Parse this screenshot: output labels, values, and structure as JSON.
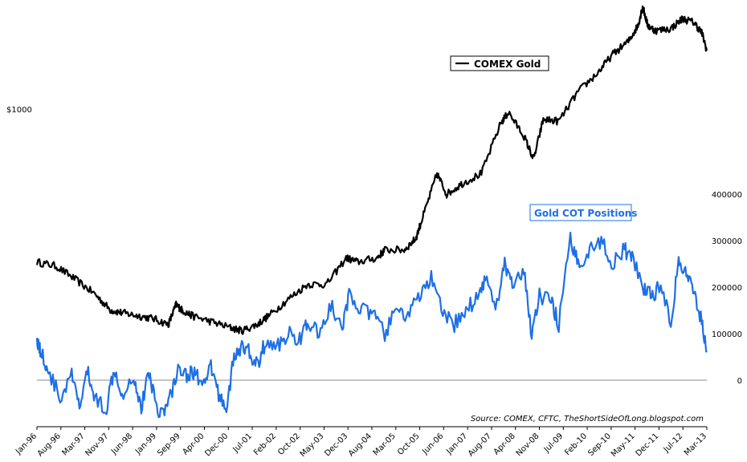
{
  "chart_data": {
    "type": "line",
    "x_tick_labels": [
      "Jan-96",
      "Aug-96",
      "Mar-97",
      "Nov-97",
      "Jun-98",
      "Jan-99",
      "Sep-99",
      "Apr-00",
      "Dec-00",
      "Jul-01",
      "Feb-02",
      "Oct-02",
      "May-03",
      "Dec-03",
      "Aug-04",
      "Mar-05",
      "Oct-05",
      "Jun-06",
      "Jan-07",
      "Aug-07",
      "Apr-08",
      "Nov-08",
      "Jul-09",
      "Feb-10",
      "Sep-10",
      "May-11",
      "Dec-11",
      "Jul-12",
      "Mar-13"
    ],
    "left_axis": {
      "tick_labels": [
        "$1000"
      ],
      "scale": "log"
    },
    "right_axis": {
      "tick_values": [
        0,
        100000,
        200000,
        300000,
        400000
      ],
      "tick_labels": [
        "0",
        "100000",
        "200000",
        "300000",
        "400000"
      ],
      "ylim": [
        -130000,
        440000
      ]
    },
    "series": [
      {
        "name": "COMEX Gold",
        "color": "#000000",
        "axis": "left",
        "unit": "USD/oz",
        "x": [
          1996.0,
          1996.5,
          1997.0,
          1997.5,
          1997.9,
          1998.2,
          1998.6,
          1999.0,
          1999.4,
          1999.6,
          1999.75,
          2000.0,
          2000.5,
          2001.0,
          2001.3,
          2001.7,
          2002.0,
          2002.5,
          2003.0,
          2003.5,
          2004.0,
          2004.3,
          2004.8,
          2005.0,
          2005.5,
          2005.8,
          2006.0,
          2006.35,
          2006.6,
          2007.0,
          2007.5,
          2008.0,
          2008.2,
          2008.6,
          2008.85,
          2009.1,
          2009.5,
          2010.0,
          2010.5,
          2010.9,
          2011.3,
          2011.55,
          2011.67,
          2011.8,
          2012.0,
          2012.4,
          2012.7,
          2013.0,
          2013.2,
          2013.33
        ],
        "y": [
          400,
          390,
          360,
          330,
          300,
          295,
          290,
          285,
          275,
          310,
          300,
          290,
          280,
          270,
          265,
          275,
          290,
          320,
          350,
          350,
          410,
          400,
          410,
          430,
          430,
          460,
          530,
          680,
          600,
          640,
          680,
          920,
          980,
          850,
          740,
          940,
          930,
          1110,
          1240,
          1390,
          1500,
          1650,
          1850,
          1650,
          1600,
          1620,
          1720,
          1680,
          1580,
          1420
        ]
      },
      {
        "name": "Gold COT Positions",
        "color": "#1e6fe6",
        "axis": "right",
        "unit": "contracts",
        "x": [
          1996.0,
          1996.1,
          1996.3,
          1996.6,
          1996.9,
          1997.1,
          1997.3,
          1997.5,
          1997.8,
          1998.0,
          1998.2,
          1998.5,
          1998.7,
          1998.9,
          1999.1,
          1999.3,
          1999.5,
          1999.7,
          1999.9,
          2000.1,
          2000.3,
          2000.5,
          2000.7,
          2000.9,
          2001.1,
          2001.3,
          2001.5,
          2001.7,
          2001.9,
          2002.2,
          2002.5,
          2002.8,
          2003.0,
          2003.3,
          2003.6,
          2003.9,
          2004.1,
          2004.4,
          2004.7,
          2005.0,
          2005.3,
          2005.6,
          2005.9,
          2006.2,
          2006.5,
          2006.8,
          2007.1,
          2007.4,
          2007.6,
          2007.9,
          2008.1,
          2008.3,
          2008.6,
          2008.8,
          2009.0,
          2009.3,
          2009.5,
          2009.8,
          2010.0,
          2010.3,
          2010.6,
          2010.9,
          2011.2,
          2011.4,
          2011.7,
          2011.9,
          2012.1,
          2012.4,
          2012.6,
          2012.8,
          2013.0,
          2013.2,
          2013.33
        ],
        "y": [
          90000,
          60000,
          20000,
          -40000,
          10000,
          -60000,
          20000,
          -40000,
          -60000,
          30000,
          -30000,
          10000,
          -60000,
          20000,
          -60000,
          -70000,
          -20000,
          30000,
          10000,
          20000,
          -20000,
          30000,
          -30000,
          -60000,
          50000,
          70000,
          60000,
          30000,
          80000,
          70000,
          100000,
          90000,
          120000,
          100000,
          160000,
          110000,
          190000,
          150000,
          140000,
          100000,
          150000,
          140000,
          180000,
          220000,
          140000,
          120000,
          150000,
          180000,
          220000,
          160000,
          250000,
          200000,
          230000,
          100000,
          180000,
          170000,
          120000,
          300000,
          250000,
          280000,
          300000,
          250000,
          280000,
          260000,
          200000,
          180000,
          200000,
          130000,
          250000,
          230000,
          180000,
          130000,
          60000
        ]
      }
    ],
    "annotations": [
      "Source: COMEX, CFTC, TheShortSideOfLong.blogspot.com"
    ]
  }
}
